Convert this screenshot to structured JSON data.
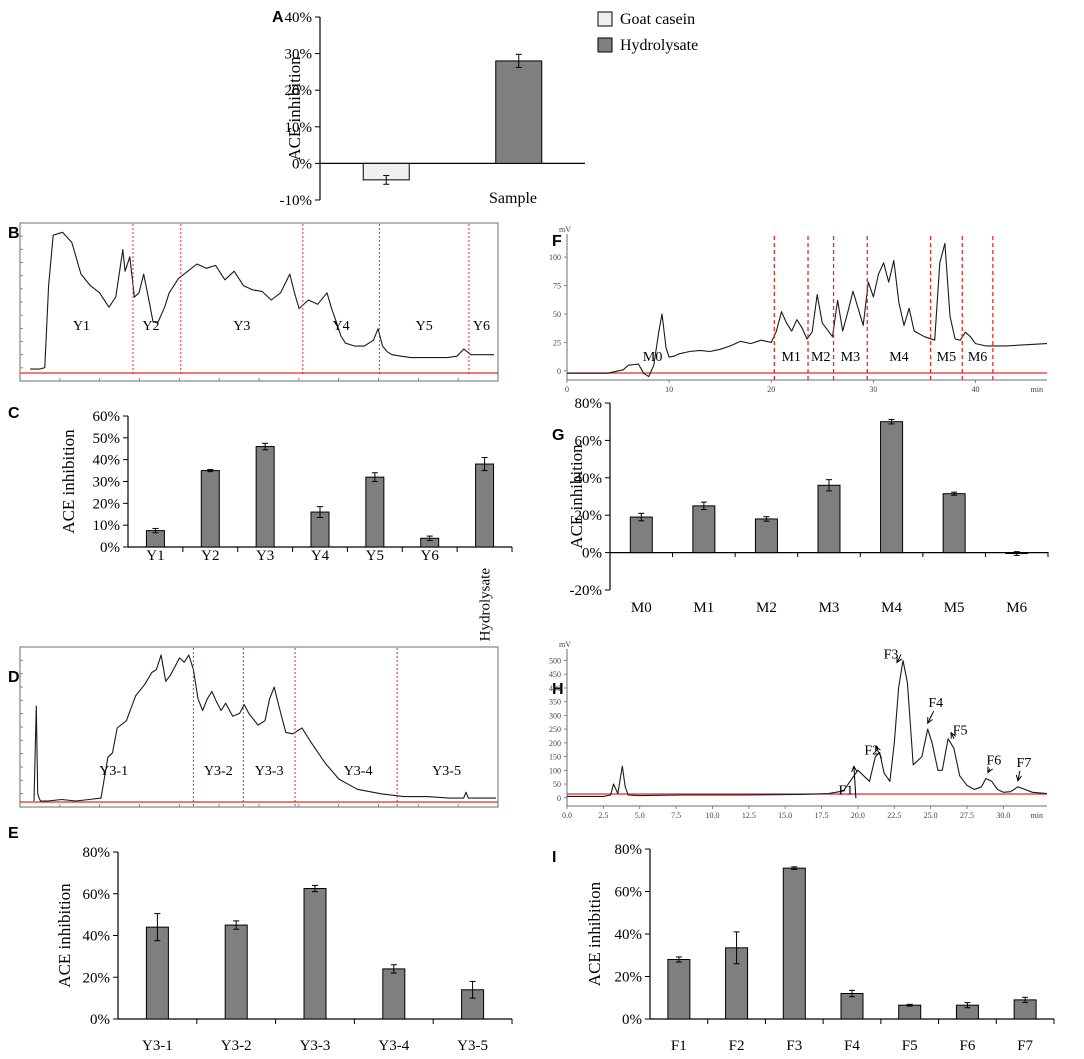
{
  "figure": {
    "colors": {
      "bar": "#7f7f7f",
      "bar_light": "#efefef",
      "axis": "#000000",
      "cut": "#e52a2a",
      "baseline": "#e52a2a",
      "trace": "#1a1a1a",
      "frame": "#6e6e6e"
    }
  },
  "chart_data": [
    {
      "id": "A",
      "panel": "A",
      "type": "bar",
      "categories": [
        "Goat casein",
        "Hydrolysate"
      ],
      "values": [
        -4.5,
        28
      ],
      "errors": [
        1.2,
        1.8
      ],
      "ylabel": "ACE inhibition",
      "xlabel": "Sample",
      "ylim": [
        -10,
        40
      ],
      "yticks": [
        -10,
        0,
        10,
        20,
        30,
        40
      ],
      "ytick_labels": [
        "-10%",
        "0%",
        "10%",
        "20%",
        "30%",
        "40%"
      ],
      "legend": [
        {
          "label": "Goat casein",
          "color": "#efefef"
        },
        {
          "label": "Hydrolysate",
          "color": "#7f7f7f"
        }
      ]
    },
    {
      "id": "B",
      "panel": "B",
      "type": "line",
      "description": "chromatogram",
      "x": [
        0,
        0.02,
        0.032,
        0.04,
        0.05,
        0.07,
        0.09,
        0.11,
        0.13,
        0.15,
        0.17,
        0.185,
        0.2,
        0.205,
        0.215,
        0.225,
        0.235,
        0.245,
        0.255,
        0.265,
        0.275,
        0.29,
        0.3,
        0.32,
        0.34,
        0.36,
        0.38,
        0.4,
        0.42,
        0.44,
        0.46,
        0.48,
        0.5,
        0.52,
        0.54,
        0.56,
        0.57,
        0.58,
        0.6,
        0.62,
        0.64,
        0.65,
        0.66,
        0.67,
        0.68,
        0.69,
        0.7,
        0.72,
        0.74,
        0.75,
        0.76,
        0.77,
        0.78,
        0.8,
        0.82,
        0.85,
        0.88,
        0.9,
        0.92,
        0.935,
        0.95,
        0.97,
        1
      ],
      "y": [
        0.02,
        0.02,
        0.03,
        0.6,
        0.95,
        0.97,
        0.9,
        0.68,
        0.6,
        0.55,
        0.45,
        0.52,
        0.85,
        0.7,
        0.8,
        0.52,
        0.55,
        0.68,
        0.52,
        0.35,
        0.34,
        0.45,
        0.55,
        0.65,
        0.7,
        0.75,
        0.72,
        0.74,
        0.64,
        0.7,
        0.6,
        0.57,
        0.56,
        0.5,
        0.55,
        0.68,
        0.55,
        0.44,
        0.5,
        0.47,
        0.55,
        0.44,
        0.35,
        0.25,
        0.2,
        0.19,
        0.18,
        0.18,
        0.22,
        0.3,
        0.18,
        0.14,
        0.12,
        0.11,
        0.1,
        0.1,
        0.1,
        0.1,
        0.11,
        0.16,
        0.12,
        0.12,
        0.12
      ],
      "cuts": [
        0.222,
        0.325,
        0.588,
        0.753,
        0.946
      ],
      "regions": [
        "Y1",
        "Y2",
        "Y3",
        "Y4",
        "Y5",
        "Y6"
      ]
    },
    {
      "id": "C",
      "panel": "C",
      "type": "bar",
      "categories": [
        "Y1",
        "Y2",
        "Y3",
        "Y4",
        "Y5",
        "Y6",
        "Hydrolysate"
      ],
      "values": [
        7.5,
        35,
        46,
        16,
        32,
        4,
        38
      ],
      "errors": [
        1,
        0.5,
        1.5,
        2.5,
        2,
        1,
        3
      ],
      "ylabel": "ACE inhibition",
      "ylim": [
        0,
        60
      ],
      "yticks": [
        0,
        10,
        20,
        30,
        40,
        50,
        60
      ],
      "ytick_labels": [
        "0%",
        "10%",
        "20%",
        "30%",
        "40%",
        "50%",
        "60%"
      ]
    },
    {
      "id": "D",
      "panel": "D",
      "type": "line",
      "description": "chromatogram",
      "x": [
        0,
        0.005,
        0.008,
        0.011,
        0.014,
        0.03,
        0.06,
        0.09,
        0.12,
        0.145,
        0.16,
        0.17,
        0.18,
        0.2,
        0.22,
        0.24,
        0.255,
        0.265,
        0.275,
        0.285,
        0.295,
        0.305,
        0.315,
        0.325,
        0.335,
        0.345,
        0.355,
        0.365,
        0.375,
        0.385,
        0.395,
        0.405,
        0.415,
        0.43,
        0.445,
        0.455,
        0.465,
        0.475,
        0.485,
        0.5,
        0.51,
        0.52,
        0.53,
        0.545,
        0.56,
        0.58,
        0.6,
        0.63,
        0.66,
        0.7,
        0.75,
        0.8,
        0.85,
        0.9,
        0.93,
        0.935,
        0.94,
        1
      ],
      "y": [
        0,
        0.65,
        0.05,
        0.02,
        0,
        0,
        0.01,
        0,
        0.01,
        0.02,
        0.3,
        0.33,
        0.5,
        0.55,
        0.72,
        0.8,
        0.88,
        0.9,
        1,
        0.82,
        0.86,
        0.92,
        0.98,
        0.95,
        1,
        0.9,
        0.7,
        0.62,
        0.7,
        0.75,
        0.68,
        0.62,
        0.67,
        0.58,
        0.6,
        0.66,
        0.6,
        0.56,
        0.52,
        0.55,
        0.7,
        0.78,
        0.65,
        0.47,
        0.46,
        0.5,
        0.4,
        0.26,
        0.15,
        0.08,
        0.05,
        0.03,
        0.03,
        0.02,
        0.02,
        0.06,
        0.02,
        0.02
      ],
      "cuts": [
        0.345,
        0.453,
        0.565,
        0.786
      ],
      "regions": [
        "Y3-1",
        "Y3-2",
        "Y3-3",
        "Y3-4",
        "Y3-5"
      ]
    },
    {
      "id": "E",
      "panel": "E",
      "type": "bar",
      "categories": [
        "Y3-1",
        "Y3-2",
        "Y3-3",
        "Y3-4",
        "Y3-5"
      ],
      "values": [
        44,
        45,
        62.5,
        24,
        14
      ],
      "errors": [
        6.5,
        2,
        1.5,
        2,
        4
      ],
      "ylabel": "ACE inhibition",
      "ylim": [
        0,
        80
      ],
      "yticks": [
        0,
        20,
        40,
        60,
        80
      ],
      "ytick_labels": [
        "0%",
        "20%",
        "40%",
        "60%",
        "80%"
      ]
    },
    {
      "id": "F",
      "panel": "F",
      "type": "line",
      "description": "chromatogram",
      "yunit": "mV",
      "xunit": "min",
      "xlim": [
        0,
        47
      ],
      "ylim": [
        -8,
        115
      ],
      "xticks": [
        0,
        10,
        20,
        30,
        40
      ],
      "yticks": [
        0,
        25,
        50,
        75,
        100
      ],
      "x": [
        0,
        4,
        5.5,
        6,
        7,
        7.5,
        8,
        8.5,
        9,
        9.3,
        9.7,
        10,
        10.5,
        11,
        12,
        13,
        14,
        15,
        16,
        17,
        18,
        19,
        20,
        20.5,
        21,
        21.5,
        22,
        22.5,
        23,
        23.5,
        24,
        24.5,
        25,
        26,
        26.5,
        27,
        27.5,
        28,
        29,
        29.5,
        30,
        30.5,
        31,
        31.5,
        32,
        32.5,
        33,
        33.5,
        34,
        35,
        36,
        36.5,
        37,
        37.5,
        38,
        38.5,
        39,
        39.5,
        40,
        41,
        43,
        47
      ],
      "y": [
        -2,
        -2,
        1,
        5,
        6,
        -2,
        -5,
        5,
        35,
        50,
        20,
        12,
        13,
        15,
        17,
        18,
        17,
        19,
        22,
        26,
        24,
        27,
        25,
        35,
        52,
        42,
        35,
        45,
        38,
        28,
        34,
        67,
        42,
        30,
        62,
        35,
        52,
        70,
        40,
        78,
        65,
        85,
        95,
        78,
        97,
        60,
        40,
        55,
        35,
        30,
        27,
        95,
        112,
        48,
        28,
        27,
        34,
        30,
        24,
        22,
        22,
        24
      ],
      "cuts": [
        20.3,
        23.6,
        26.1,
        29.4,
        35.6,
        38.7,
        41.7
      ],
      "regions": [
        "M0",
        "M1",
        "M2",
        "M3",
        "M4",
        "M5",
        "M6"
      ]
    },
    {
      "id": "G",
      "panel": "G",
      "type": "bar",
      "categories": [
        "M0",
        "M1",
        "M2",
        "M3",
        "M4",
        "M5",
        "M6"
      ],
      "values": [
        19,
        25,
        18,
        36,
        70,
        31.5,
        -0.5
      ],
      "errors": [
        2,
        2,
        1.2,
        3,
        1.2,
        0.8,
        1
      ],
      "ylabel": "ACE inhibition",
      "ylim": [
        -20,
        80
      ],
      "yticks": [
        -20,
        0,
        20,
        40,
        60,
        80
      ],
      "ytick_labels": [
        "-20%",
        "0%",
        "20%",
        "40%",
        "60%",
        "80%"
      ]
    },
    {
      "id": "H",
      "panel": "H",
      "type": "line",
      "description": "chromatogram",
      "yunit": "mV",
      "xunit": "min",
      "xlim": [
        0,
        33
      ],
      "ylim": [
        -30,
        520
      ],
      "xticks": [
        0,
        2.5,
        5,
        7.5,
        10,
        12.5,
        15,
        17.5,
        20,
        22.5,
        25,
        27.5,
        30
      ],
      "xtick_labels": [
        "0.0",
        "2.5",
        "5.0",
        "7.5",
        "10.0",
        "12.5",
        "15.0",
        "17.5",
        "20.0",
        "22.5",
        "25.0",
        "27.5",
        "30.0"
      ],
      "yticks": [
        0,
        50,
        100,
        150,
        200,
        250,
        300,
        350,
        400,
        450,
        500
      ],
      "x": [
        0,
        2.5,
        3,
        3.2,
        3.5,
        3.8,
        4,
        4.2,
        5,
        8,
        12,
        16,
        18,
        19,
        19.6,
        20,
        20.4,
        20.8,
        21.2,
        21.5,
        21.8,
        22.2,
        22.5,
        22.8,
        23.1,
        23.4,
        23.8,
        24.4,
        24.8,
        25.1,
        25.5,
        25.8,
        26.2,
        26.6,
        27,
        27.5,
        28,
        28.5,
        28.8,
        29.2,
        29.6,
        30,
        30.5,
        31,
        31.5,
        32,
        33
      ],
      "y": [
        5,
        5,
        10,
        50,
        15,
        115,
        40,
        10,
        8,
        10,
        10,
        12,
        15,
        25,
        70,
        100,
        80,
        60,
        150,
        165,
        90,
        60,
        200,
        400,
        500,
        420,
        120,
        150,
        250,
        200,
        100,
        100,
        215,
        180,
        80,
        45,
        30,
        40,
        70,
        60,
        30,
        20,
        22,
        40,
        30,
        20,
        15
      ],
      "peak_labels": [
        {
          "label": "F1",
          "x": 20,
          "y": 100
        },
        {
          "label": "F2",
          "x": 21.5,
          "y": 165
        },
        {
          "label": "F3",
          "x": 23.1,
          "y": 500
        },
        {
          "label": "F4",
          "x": 24.8,
          "y": 250
        },
        {
          "label": "F5",
          "x": 26.2,
          "y": 215
        },
        {
          "label": "F6",
          "x": 28.8,
          "y": 70
        },
        {
          "label": "F7",
          "x": 31,
          "y": 40
        }
      ]
    },
    {
      "id": "I",
      "panel": "I",
      "type": "bar",
      "categories": [
        "F1",
        "F2",
        "F3",
        "F4",
        "F5",
        "F6",
        "F7"
      ],
      "values": [
        28,
        33.5,
        71,
        12,
        6.5,
        6.5,
        9
      ],
      "errors": [
        1.2,
        7.5,
        0.6,
        1.5,
        0.4,
        1.2,
        1.2
      ],
      "ylabel": "ACE inhibition",
      "ylim": [
        0,
        80
      ],
      "yticks": [
        0,
        20,
        40,
        60,
        80
      ],
      "ytick_labels": [
        "0%",
        "20%",
        "40%",
        "60%",
        "80%"
      ]
    }
  ]
}
